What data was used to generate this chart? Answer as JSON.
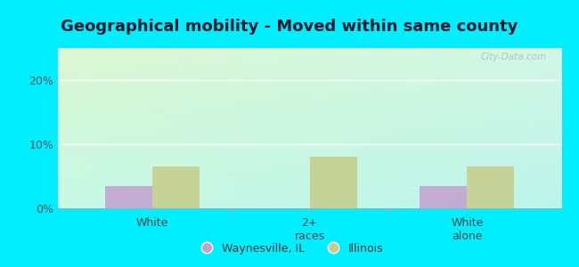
{
  "title": "Geographical mobility - Moved within same county",
  "categories": [
    "White",
    "2+\nraces",
    "White\nalone"
  ],
  "waynesville_values": [
    3.5,
    0.0,
    3.5
  ],
  "illinois_values": [
    6.5,
    8.0,
    6.5
  ],
  "waynesville_color": "#c4a0d0",
  "illinois_color": "#c8cc8a",
  "bar_width": 0.3,
  "ylim": [
    0,
    25
  ],
  "yticks": [
    0,
    10,
    20
  ],
  "ytick_labels": [
    "0%",
    "10%",
    "20%"
  ],
  "background_color": "#00eeff",
  "legend_labels": [
    "Waynesville, IL",
    "Illinois"
  ],
  "title_fontsize": 13,
  "watermark": "City-Data.com",
  "grad_topleft": [
    0.86,
    0.97,
    0.82,
    1.0
  ],
  "grad_topright": [
    0.82,
    0.97,
    0.9,
    1.0
  ],
  "grad_botleft": [
    0.78,
    0.98,
    0.9,
    1.0
  ],
  "grad_botright": [
    0.74,
    0.96,
    0.92,
    1.0
  ]
}
